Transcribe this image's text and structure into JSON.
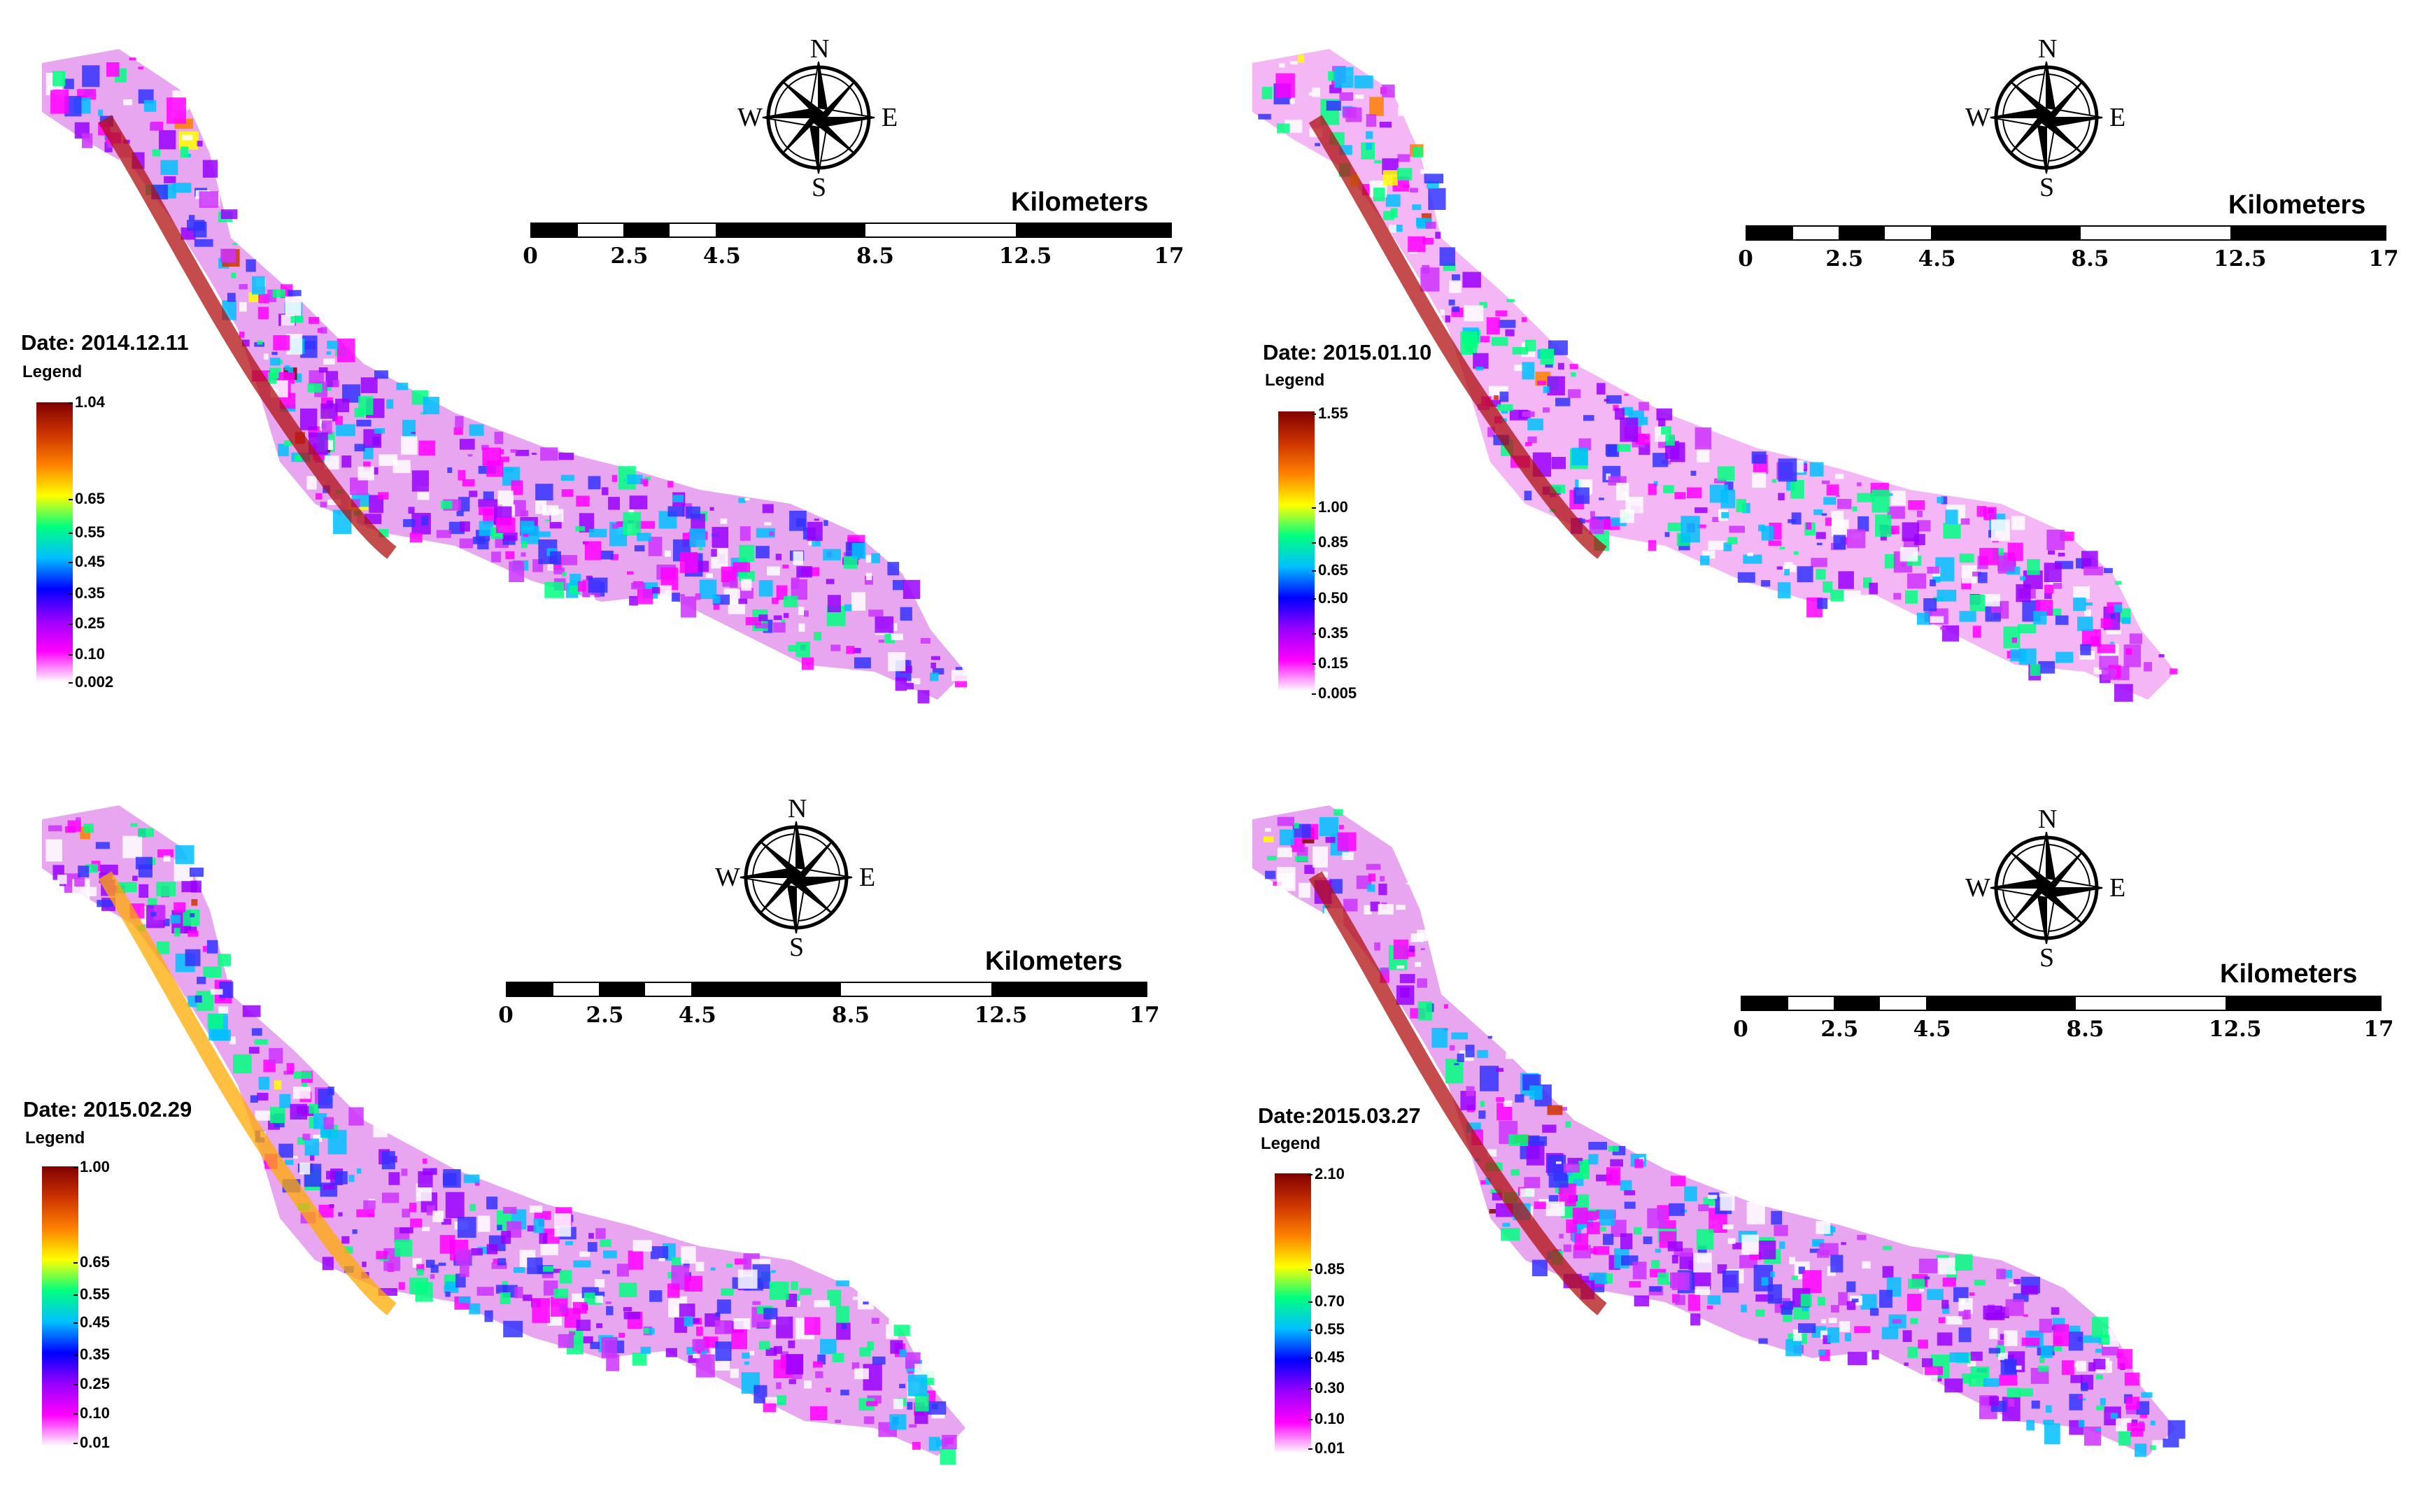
{
  "common": {
    "scale_unit": "Kilometers",
    "scale_ticks": [
      "0",
      "2.5",
      "4.5",
      "8.5",
      "12.5",
      "17"
    ],
    "compass": {
      "n": "N",
      "s": "S",
      "e": "E",
      "w": "W"
    },
    "legend_title": "Legend",
    "colormap": [
      "#ffffff",
      "#ff00ff",
      "#9900ff",
      "#0000ff",
      "#00bfff",
      "#00ff80",
      "#ffff00",
      "#ff8000",
      "#cc3300",
      "#800000"
    ]
  },
  "panels": [
    {
      "date": "Date: 2014.12.11",
      "ticks": [
        "1.04",
        "0.65",
        "0.55",
        "0.45",
        "0.35",
        "0.25",
        "0.10",
        "0.002"
      ]
    },
    {
      "date": "Date: 2015.01.10",
      "ticks": [
        "1.55",
        "1.00",
        "0.85",
        "0.65",
        "0.50",
        "0.35",
        "0.15",
        "0.005"
      ]
    },
    {
      "date": "Date: 2015.02.29",
      "ticks": [
        "1.00",
        "0.65",
        "0.55",
        "0.45",
        "0.35",
        "0.25",
        "0.10",
        "0.01"
      ]
    },
    {
      "date": "Date:2015.03.27",
      "ticks": [
        "2.10",
        "0.85",
        "0.70",
        "0.55",
        "0.45",
        "0.30",
        "0.10",
        "0.01"
      ]
    }
  ]
}
